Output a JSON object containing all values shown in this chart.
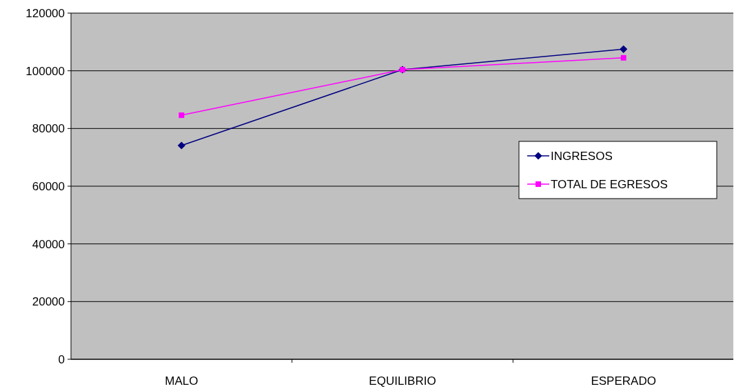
{
  "chart_data": {
    "type": "line",
    "categories": [
      "MALO",
      "EQUILIBRIO",
      "ESPERADO"
    ],
    "series": [
      {
        "name": "INGRESOS",
        "color": "#000080",
        "values": [
          74100,
          100400,
          107500
        ],
        "marker": "diamond"
      },
      {
        "name": "TOTAL DE EGRESOS",
        "color": "#ff00ff",
        "values": [
          84600,
          100400,
          104500
        ],
        "marker": "square"
      }
    ],
    "ylim": [
      0,
      120000
    ],
    "yticks": [
      0,
      20000,
      40000,
      60000,
      80000,
      100000,
      120000
    ],
    "grid": "y",
    "legend": "right",
    "line_style": "solid"
  }
}
